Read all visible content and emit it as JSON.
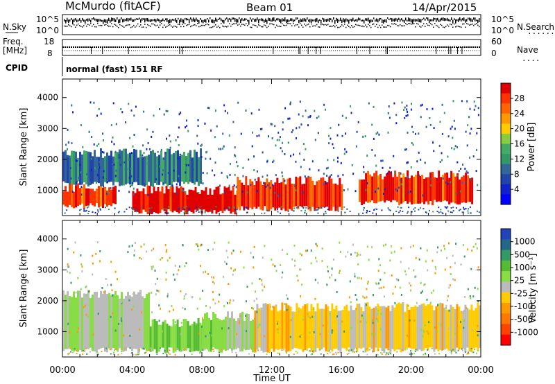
{
  "header": {
    "station": "McMurdo (fitACF)",
    "beam": "Beam 01",
    "date": "14/Apr/2015"
  },
  "status_panel": {
    "left_label": "N.Sky",
    "right_label": "N.Search",
    "left_ticks": [
      "10^5",
      "10^0"
    ],
    "right_ticks": [
      "10^5",
      "10^0"
    ]
  },
  "freq_panel": {
    "left_label_1": "Freq.",
    "left_label_2": "[MHz]",
    "left_ticks": [
      "18",
      "8"
    ],
    "right_label": "Nave",
    "right_ticks": [
      "60",
      "0"
    ]
  },
  "cpid_panel": {
    "label": "CPID",
    "mode": "normal (fast) 151 RF"
  },
  "power_panel": {
    "y_label": "Slant Range [km]",
    "y_ticks": [
      "4000",
      "3000",
      "2000",
      "1000"
    ],
    "colorbar_label": "Power [dB]",
    "colorbar_ticks": [
      "28",
      "24",
      "20",
      "16",
      "12",
      "8",
      "4"
    ],
    "colorbar_colors": [
      "#e00000",
      "#ff3300",
      "#ff6600",
      "#ff9900",
      "#ffcc00",
      "#88cc44",
      "#44aa66",
      "#339966",
      "#336699",
      "#2244aa",
      "#1122cc",
      "#0000ff"
    ]
  },
  "velocity_panel": {
    "y_label": "Slant Range [km]",
    "y_ticks": [
      "4000",
      "3000",
      "2000",
      "1000"
    ],
    "colorbar_label": "Velocity [m s⁻¹]",
    "colorbar_ticks": [
      "1000",
      "500",
      "100",
      "25",
      "-25",
      "-100",
      "-500",
      "-1000"
    ],
    "colorbar_colors": [
      "#2244bb",
      "#226688",
      "#339966",
      "#55bb33",
      "#88dd44",
      "#bbbbbb",
      "#ffcc00",
      "#ff9900",
      "#ff7700",
      "#ff4400",
      "#ff0000"
    ]
  },
  "x_axis": {
    "label": "Time UT",
    "ticks": [
      "00:00",
      "04:00",
      "08:00",
      "12:00",
      "16:00",
      "20:00",
      "00:00"
    ]
  },
  "chart_data": [
    {
      "type": "heatmap",
      "title": "Power",
      "xlabel": "Time UT",
      "ylabel": "Slant Range [km]",
      "xlim": [
        "00:00",
        "24:00"
      ],
      "ylim": [
        180,
        4600
      ],
      "colorbar": {
        "label": "Power [dB]",
        "range": [
          0,
          30
        ]
      },
      "features": [
        {
          "time_start": 0.0,
          "time_end": 3.0,
          "range_km_low": 500,
          "range_km_high": 1100,
          "power_db": 26
        },
        {
          "time_start": 4.0,
          "time_end": 10.0,
          "range_km_low": 300,
          "range_km_high": 1000,
          "power_db": 29
        },
        {
          "time_start": 10.0,
          "time_end": 16.0,
          "range_km_low": 400,
          "range_km_high": 1300,
          "power_db": 28
        },
        {
          "time_start": 17.0,
          "time_end": 23.5,
          "range_km_low": 600,
          "range_km_high": 1500,
          "power_db": 26
        },
        {
          "time_start": 0.0,
          "time_end": 8.0,
          "range_km_low": 1200,
          "range_km_high": 2200,
          "power_db": 10
        }
      ]
    },
    {
      "type": "heatmap",
      "title": "Velocity",
      "xlabel": "Time UT",
      "ylabel": "Slant Range [km]",
      "xlim": [
        "00:00",
        "24:00"
      ],
      "ylim": [
        180,
        4600
      ],
      "colorbar": {
        "label": "Velocity [m s⁻¹]",
        "range": [
          -1000,
          1000
        ]
      },
      "features": [
        {
          "time_start": 0.0,
          "time_end": 5.0,
          "range_km_low": 400,
          "range_km_high": 2200,
          "velocity": 80
        },
        {
          "time_start": 5.0,
          "time_end": 8.0,
          "range_km_low": 400,
          "range_km_high": 1300,
          "velocity": 300
        },
        {
          "time_start": 8.0,
          "time_end": 11.0,
          "range_km_low": 400,
          "range_km_high": 1500,
          "velocity": 150
        },
        {
          "time_start": 11.0,
          "time_end": 24.0,
          "range_km_low": 400,
          "range_km_high": 1800,
          "velocity": -150
        }
      ]
    }
  ]
}
